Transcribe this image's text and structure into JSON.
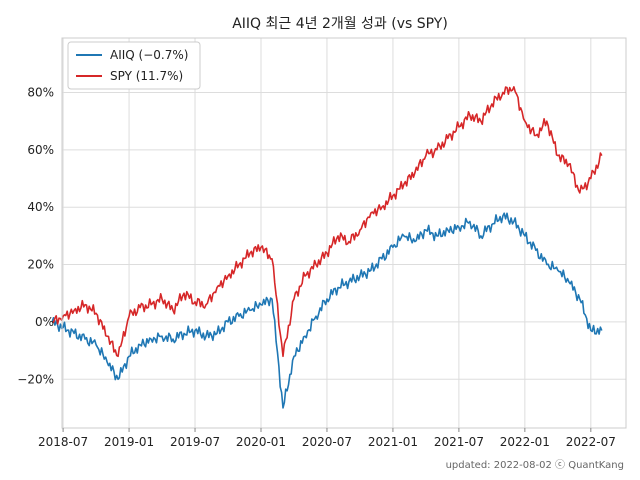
{
  "chart_data": {
    "type": "line",
    "title": "AIIQ 최근 4년 2개월 성과 (vs SPY)",
    "xlabel": "",
    "ylabel": "",
    "grid": true,
    "legend_position": "top-left",
    "x_ticks": [
      "2018-07",
      "2019-01",
      "2019-07",
      "2020-01",
      "2020-07",
      "2021-01",
      "2021-07",
      "2022-01",
      "2022-07"
    ],
    "y_ticks": [
      "−20%",
      "0%",
      "20%",
      "40%",
      "60%",
      "80%"
    ],
    "ylim": [
      -37,
      99
    ],
    "x": [
      "2018-06",
      "2018-07",
      "2018-08",
      "2018-09",
      "2018-10",
      "2018-11",
      "2018-12",
      "2019-01",
      "2019-02",
      "2019-03",
      "2019-04",
      "2019-05",
      "2019-06",
      "2019-07",
      "2019-08",
      "2019-09",
      "2019-10",
      "2019-11",
      "2019-12",
      "2020-01",
      "2020-02",
      "2020-03",
      "2020-04",
      "2020-05",
      "2020-06",
      "2020-07",
      "2020-08",
      "2020-09",
      "2020-10",
      "2020-11",
      "2020-12",
      "2021-01",
      "2021-02",
      "2021-03",
      "2021-04",
      "2021-05",
      "2021-06",
      "2021-07",
      "2021-08",
      "2021-09",
      "2021-10",
      "2021-11",
      "2021-12",
      "2022-01",
      "2022-02",
      "2022-03",
      "2022-04",
      "2022-05",
      "2022-06",
      "2022-07",
      "2022-08"
    ],
    "series": [
      {
        "name": "AIIQ (−0.7%)",
        "color": "#1f77b4",
        "values": [
          0,
          -2,
          -4,
          -6,
          -8,
          -14,
          -20,
          -12,
          -8,
          -6,
          -5,
          -6,
          -4,
          -3,
          -5,
          -4,
          0,
          2,
          4,
          6,
          8,
          -30,
          -12,
          -5,
          2,
          8,
          12,
          14,
          16,
          18,
          22,
          26,
          30,
          28,
          32,
          30,
          32,
          33,
          35,
          30,
          34,
          37,
          35,
          30,
          25,
          20,
          18,
          14,
          8,
          -3,
          -3
        ]
      },
      {
        "name": "SPY (11.7%)",
        "color": "#d62728",
        "values": [
          0,
          2,
          4,
          6,
          3,
          -5,
          -12,
          2,
          5,
          6,
          8,
          4,
          10,
          7,
          6,
          12,
          16,
          20,
          24,
          26,
          22,
          -12,
          8,
          16,
          20,
          24,
          30,
          28,
          32,
          38,
          40,
          44,
          48,
          52,
          58,
          60,
          64,
          68,
          72,
          70,
          76,
          80,
          82,
          70,
          65,
          70,
          58,
          55,
          45,
          50,
          58
        ]
      }
    ]
  },
  "footer": "updated: 2022-08-02 ⓒ QuantKang"
}
